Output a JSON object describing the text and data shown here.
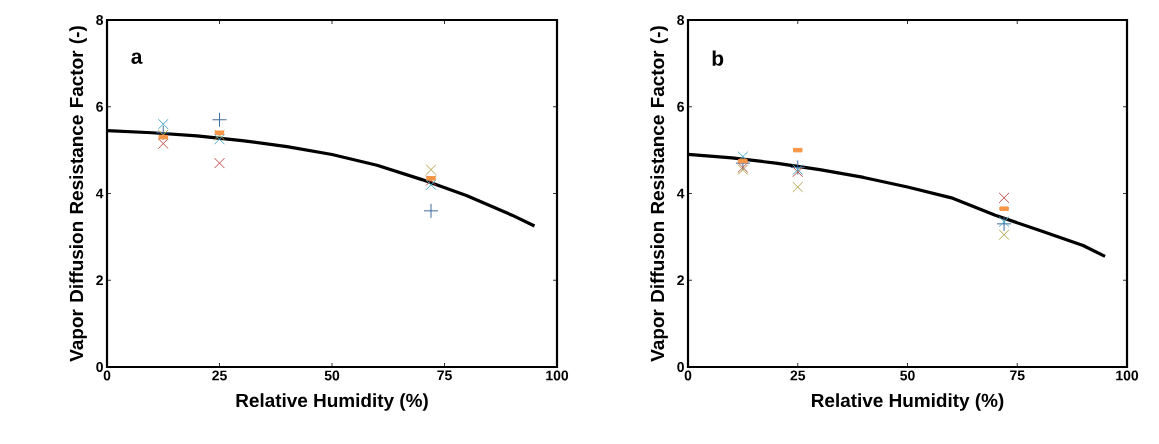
{
  "chart_data": [
    {
      "type": "scatter",
      "xlabel": "Relative Humidity (%)",
      "ylabel": "Vapor Diffusion Resistance Factor (-)",
      "annotations": [
        {
          "text": "a"
        }
      ],
      "xlim": [
        0,
        100
      ],
      "ylim": [
        0,
        8
      ],
      "xticks": [
        0,
        25,
        50,
        75,
        100
      ],
      "yticks": [
        0,
        2,
        4,
        6,
        8
      ],
      "grid": false,
      "series": [
        {
          "type": "line",
          "color": "#000000",
          "marker": "none",
          "x": [
            0,
            10,
            20,
            30,
            40,
            50,
            60,
            70,
            80,
            90,
            95
          ],
          "values": [
            5.45,
            5.4,
            5.33,
            5.22,
            5.08,
            4.9,
            4.65,
            4.32,
            3.95,
            3.5,
            3.25
          ]
        },
        {
          "color": "#3f6a9e",
          "marker": "plus",
          "x": [
            12.5,
            25,
            72
          ],
          "values": [
            5.4,
            5.7,
            3.6
          ]
        },
        {
          "color": "#c0504d",
          "marker": "cross",
          "x": [
            12.5,
            25,
            72
          ],
          "values": [
            5.15,
            4.7,
            4.3
          ]
        },
        {
          "color": "#4bacc6",
          "marker": "cross",
          "x": [
            12.5,
            25,
            72
          ],
          "values": [
            5.6,
            5.25,
            4.2
          ]
        },
        {
          "color": "#b5a64e",
          "marker": "cross",
          "x": [
            12.5,
            25,
            72
          ],
          "values": [
            5.35,
            5.35,
            4.55
          ]
        },
        {
          "color": "#f79646",
          "marker": "square",
          "x": [
            12.5,
            25,
            72
          ],
          "values": [
            5.3,
            5.4,
            4.35
          ]
        }
      ]
    },
    {
      "type": "scatter",
      "xlabel": "Relative Humidity (%)",
      "ylabel": "Vapor Diffusion Resistance Factor (-)",
      "annotations": [
        {
          "text": "b"
        }
      ],
      "xlim": [
        0,
        100
      ],
      "ylim": [
        0,
        8
      ],
      "xticks": [
        0,
        25,
        50,
        75,
        100
      ],
      "yticks": [
        0,
        2,
        4,
        6,
        8
      ],
      "grid": false,
      "series": [
        {
          "type": "line",
          "color": "#000000",
          "marker": "none",
          "x": [
            0,
            10,
            20,
            30,
            40,
            50,
            60,
            70,
            80,
            90,
            95
          ],
          "values": [
            4.9,
            4.82,
            4.7,
            4.55,
            4.37,
            4.15,
            3.9,
            3.5,
            3.15,
            2.8,
            2.55
          ]
        },
        {
          "color": "#3f6a9e",
          "marker": "plus",
          "x": [
            12.5,
            25,
            72
          ],
          "values": [
            4.7,
            4.6,
            3.3
          ]
        },
        {
          "color": "#c0504d",
          "marker": "cross",
          "x": [
            12.5,
            25,
            72
          ],
          "values": [
            4.6,
            4.5,
            3.9
          ]
        },
        {
          "color": "#4bacc6",
          "marker": "cross",
          "x": [
            12.5,
            25,
            72
          ],
          "values": [
            4.85,
            4.55,
            3.35
          ]
        },
        {
          "color": "#b5a64e",
          "marker": "cross",
          "x": [
            12.5,
            25,
            72
          ],
          "values": [
            4.55,
            4.15,
            3.05
          ]
        },
        {
          "color": "#f79646",
          "marker": "square",
          "x": [
            12.5,
            25,
            72
          ],
          "values": [
            4.75,
            5.0,
            3.65
          ]
        }
      ]
    }
  ]
}
